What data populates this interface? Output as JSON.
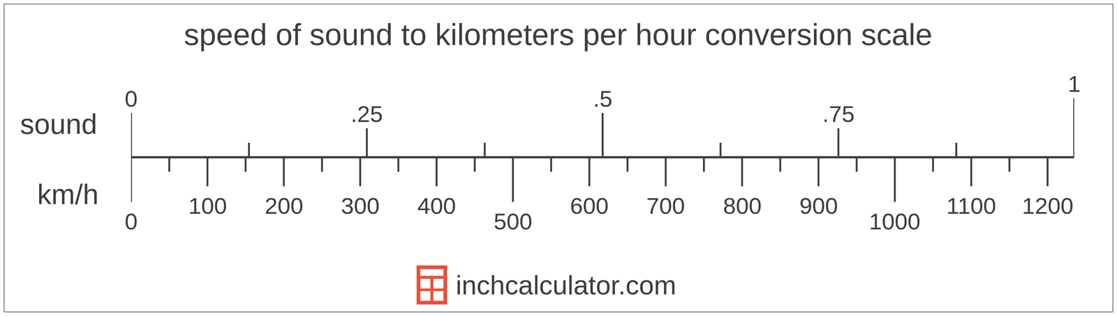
{
  "chart_data": {
    "type": "conversion_scale",
    "title": "speed of sound to kilometers per hour conversion scale",
    "footer": "inchcalculator.com",
    "scales": [
      {
        "name": "sound",
        "xlim": [
          0,
          1
        ],
        "xticks": [
          0,
          {
            "value": 0.25,
            "label": ".25"
          },
          {
            "value": 0.5,
            "label": ".5"
          },
          {
            "value": 0.75,
            "label": ".75"
          },
          1
        ],
        "minor_ticks": [
          0.125,
          0.375,
          0.625,
          0.875
        ]
      },
      {
        "name": "km/h",
        "xlim": [
          0,
          1234.8
        ],
        "xticks": [
          0,
          100,
          200,
          300,
          400,
          500,
          600,
          700,
          800,
          900,
          1000,
          1100,
          1200
        ],
        "minor_ticks": [
          50,
          150,
          250,
          350,
          450,
          550,
          650,
          750,
          850,
          950,
          1050,
          1150
        ]
      }
    ]
  }
}
